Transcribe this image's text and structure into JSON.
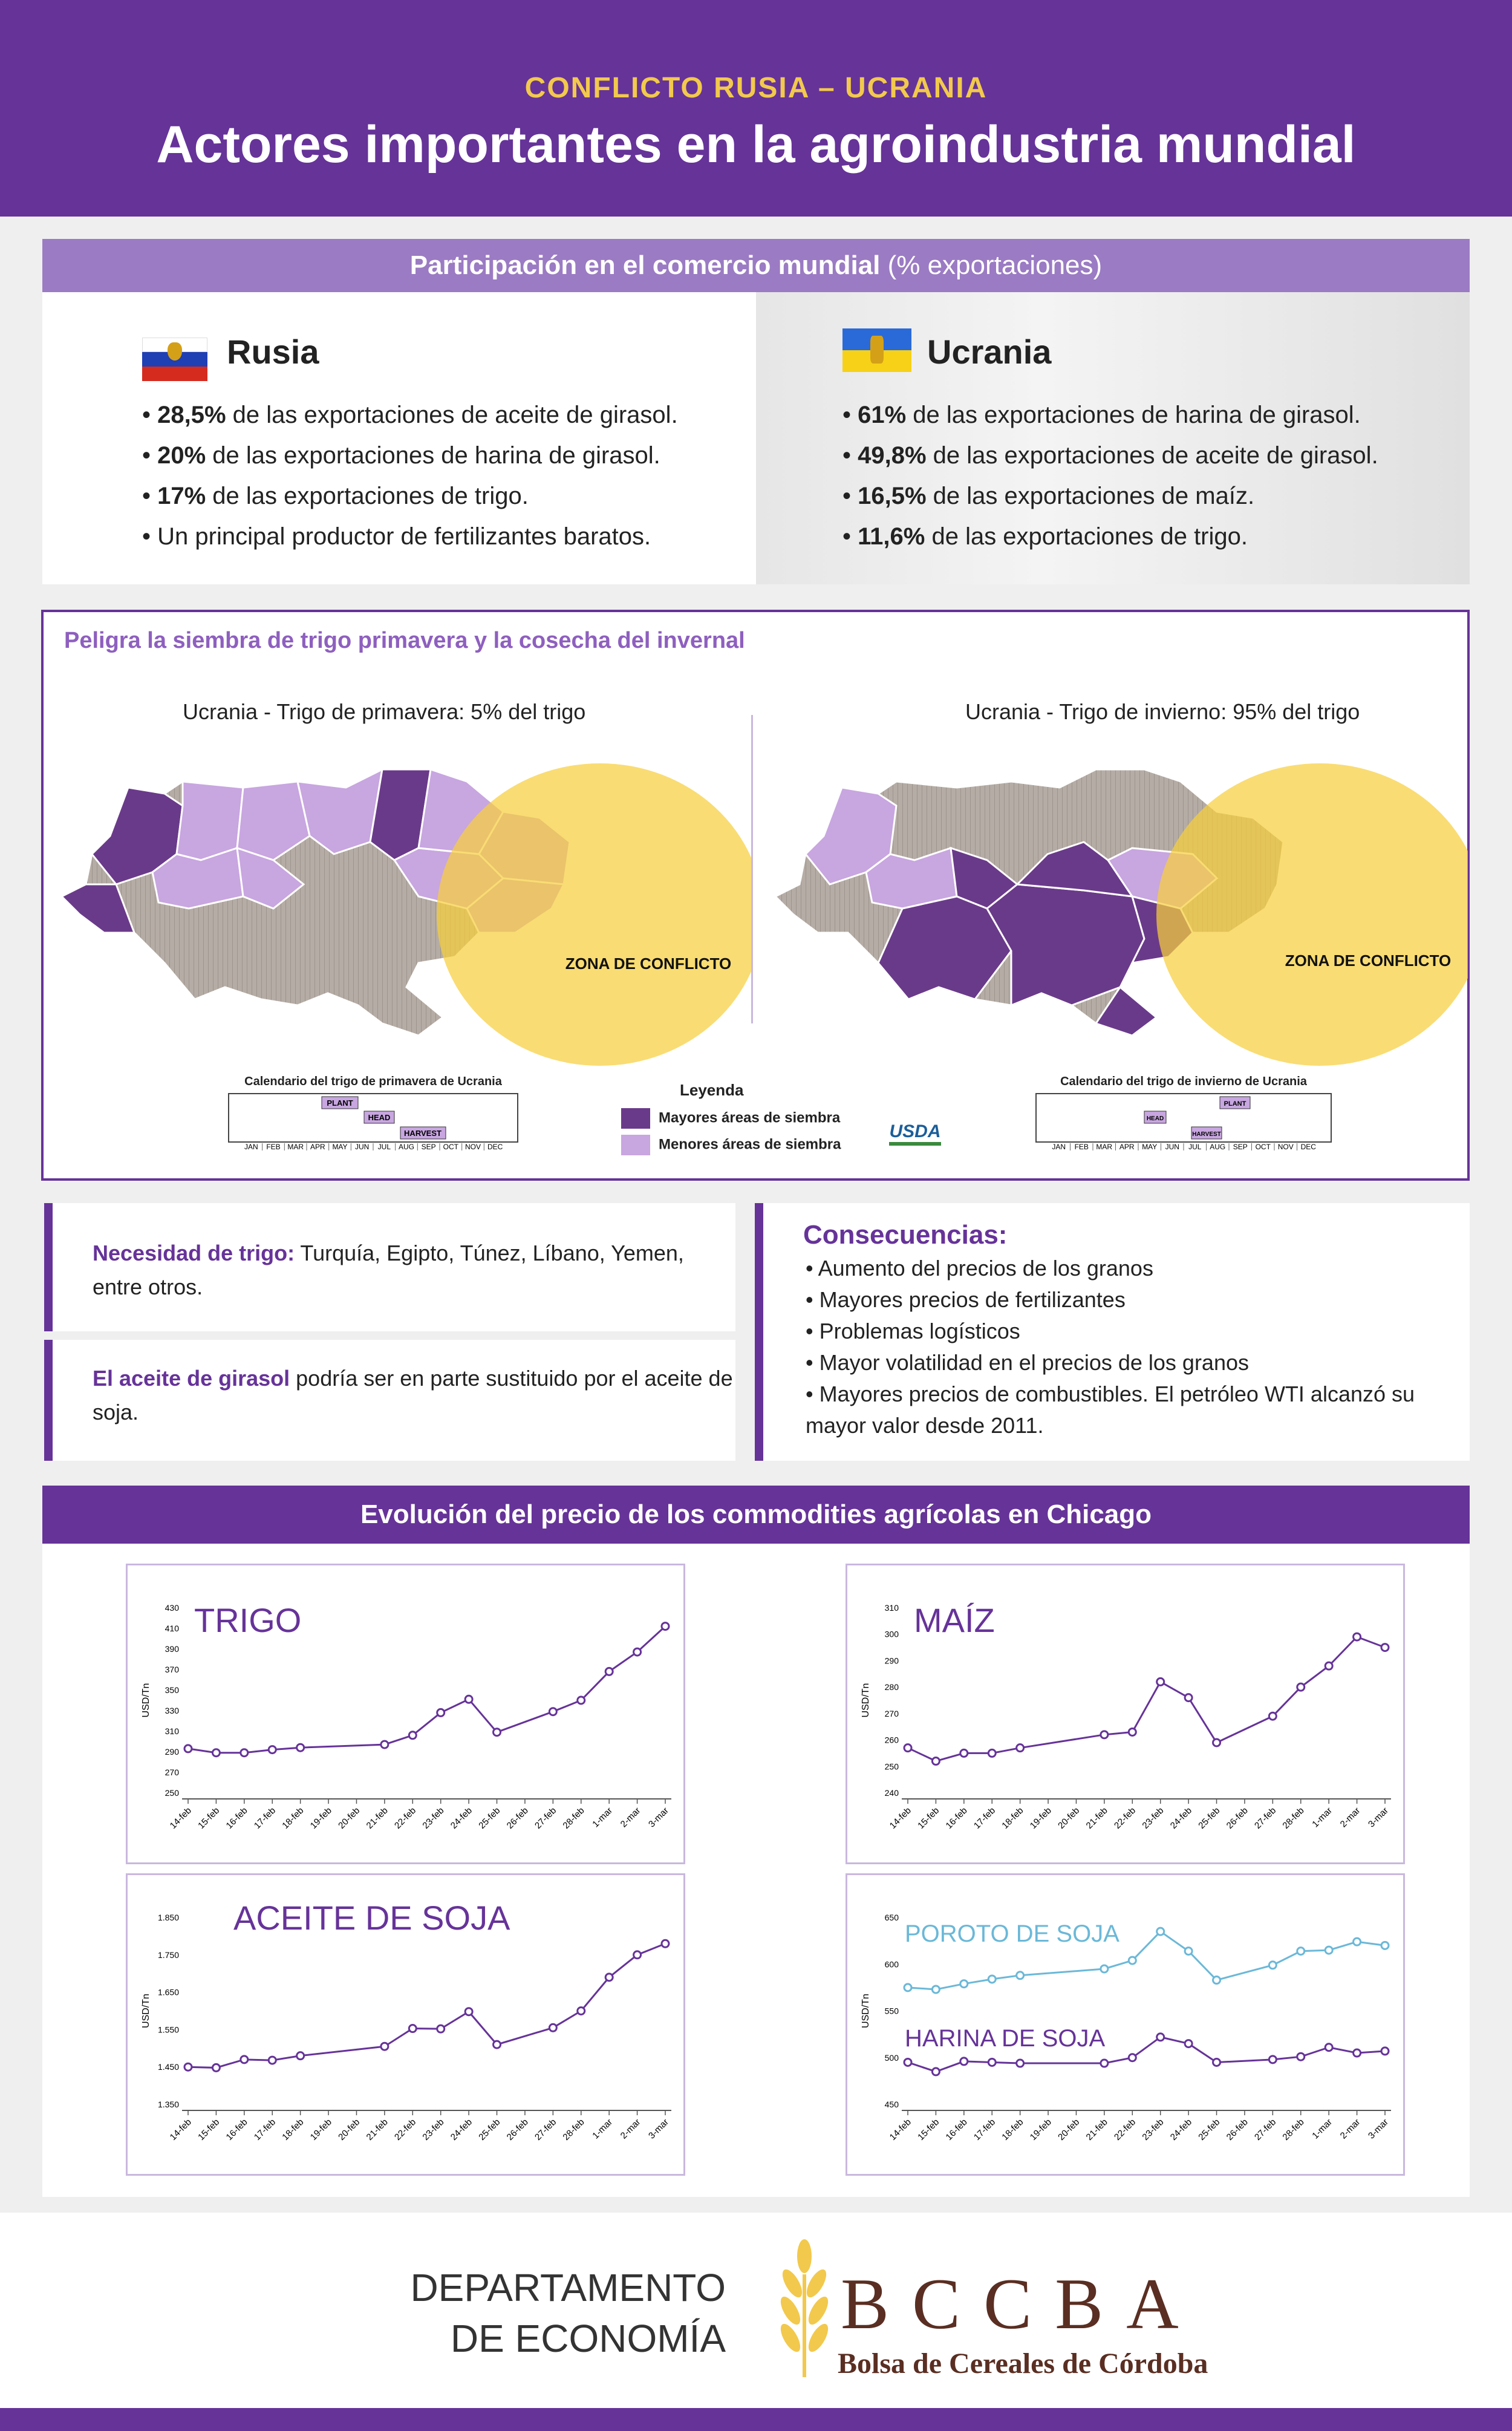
{
  "header": {
    "kicker": "CONFLICTO RUSIA – UCRANIA",
    "title": "Actores importantes en la agroindustria mundial"
  },
  "trade": {
    "bar_bold": "Participación en el comercio mundial",
    "bar_light": " (% exportaciones)",
    "russia": {
      "name": "Rusia",
      "items": [
        {
          "bold": "28,5%",
          "text": " de las exportaciones de aceite de girasol."
        },
        {
          "bold": "20%",
          "text": " de las exportaciones de harina de girasol."
        },
        {
          "bold": "17%",
          "text": " de las exportaciones de trigo."
        },
        {
          "bold": "",
          "text": "Un principal  productor de fertilizantes baratos."
        }
      ]
    },
    "ukraine": {
      "name": "Ucrania",
      "items": [
        {
          "bold": "61%",
          "text": " de las exportaciones de harina de girasol."
        },
        {
          "bold": "49,8%",
          "text": " de las exportaciones de aceite de girasol."
        },
        {
          "bold": "16,5%",
          "text": " de las exportaciones de maíz."
        },
        {
          "bold": "11,6%",
          "text": " de las exportaciones de trigo."
        }
      ]
    }
  },
  "maps": {
    "heading": "Peligra la siembra de trigo primavera y la cosecha del invernal",
    "left_title": "Ucrania - Trigo de primavera: 5% del trigo",
    "right_title": "Ucrania - Trigo de invierno: 95% del trigo",
    "conflict_label": "ZONA DE CONFLICTO",
    "left_calendar_title": "Calendario del trigo de primavera de Ucrania",
    "right_calendar_title": "Calendario del trigo de invierno de Ucrania",
    "months": [
      "JAN",
      "FEB",
      "MAR",
      "APR",
      "MAY",
      "JUN",
      "JUL",
      "AUG",
      "SEP",
      "OCT",
      "NOV",
      "DEC"
    ],
    "left_calendar": {
      "plant": "PLANT",
      "head": "HEAD",
      "harvest": "HARVEST"
    },
    "right_calendar": {
      "plant": "PLANT",
      "head": "HEAD",
      "harvest": "HARVEST"
    },
    "legend": {
      "title": "Leyenda",
      "major": "Mayores áreas de siembra",
      "minor": "Menores áreas de siembra"
    },
    "source": "USDA"
  },
  "needs": {
    "wheat_bold": "Necesidad de trigo:",
    "wheat_text": " Turquía, Egipto, Túnez, Líbano, Yemen, entre otros.",
    "oil_bold": "El aceite de girasol",
    "oil_text": " podría ser en parte sustituido por el aceite de soja."
  },
  "consequences": {
    "title": "Consecuencias:",
    "items": [
      "Aumento del precios de los granos",
      "Mayores precios de fertilizantes",
      "Problemas logísticos",
      "Mayor volatilidad en el precios de los granos",
      "Mayores precios de combustibles.  El petróleo WTI alcanzó su mayor valor desde 2011."
    ]
  },
  "prices_bar": "Evolución del precio de los commodities agrícolas en Chicago",
  "chart_data": [
    {
      "type": "line",
      "title": "TRIGO",
      "ylabel": "USD/Tn",
      "x": [
        "14-feb",
        "15-feb",
        "16-feb",
        "17-feb",
        "18-feb",
        "19-feb",
        "20-feb",
        "21-feb",
        "22-feb",
        "23-feb",
        "24-feb",
        "25-feb",
        "26-feb",
        "27-feb",
        "28-feb",
        "1-mar",
        "2-mar",
        "3-mar"
      ],
      "yticks": [
        "250",
        "270",
        "290",
        "310",
        "330",
        "350",
        "370",
        "390",
        "410",
        "430"
      ],
      "ylim": [
        250,
        430
      ],
      "series": [
        {
          "points": [
            [
              0,
              293
            ],
            [
              1,
              289
            ],
            [
              2,
              289
            ],
            [
              3,
              292
            ],
            [
              4,
              294
            ],
            [
              7,
              297
            ],
            [
              8,
              306
            ],
            [
              9,
              328
            ],
            [
              10,
              341
            ],
            [
              11,
              309
            ],
            [
              13,
              329
            ],
            [
              14,
              340
            ],
            [
              15,
              368
            ],
            [
              16,
              387
            ],
            [
              17,
              412
            ]
          ]
        }
      ],
      "color": "#663399"
    },
    {
      "type": "line",
      "title": "MAÍZ",
      "ylabel": "USD/Tn",
      "x": [
        "14-feb",
        "15-feb",
        "16-feb",
        "17-feb",
        "18-feb",
        "19-feb",
        "20-feb",
        "21-feb",
        "22-feb",
        "23-feb",
        "24-feb",
        "25-feb",
        "26-feb",
        "27-feb",
        "28-feb",
        "1-mar",
        "2-mar",
        "3-mar"
      ],
      "yticks": [
        "240",
        "250",
        "260",
        "270",
        "280",
        "290",
        "300",
        "310"
      ],
      "ylim": [
        240,
        310
      ],
      "series": [
        {
          "points": [
            [
              0,
              257
            ],
            [
              1,
              252
            ],
            [
              2,
              255
            ],
            [
              3,
              255
            ],
            [
              4,
              257
            ],
            [
              7,
              262
            ],
            [
              8,
              263
            ],
            [
              9,
              282
            ],
            [
              10,
              276
            ],
            [
              11,
              259
            ],
            [
              13,
              269
            ],
            [
              14,
              280
            ],
            [
              15,
              288
            ],
            [
              16,
              299
            ],
            [
              17,
              295
            ]
          ]
        }
      ],
      "color": "#663399"
    },
    {
      "type": "line",
      "title": "ACEITE DE SOJA",
      "ylabel": "USD/Tn",
      "x": [
        "14-feb",
        "15-feb",
        "16-feb",
        "17-feb",
        "18-feb",
        "19-feb",
        "20-feb",
        "21-feb",
        "22-feb",
        "23-feb",
        "24-feb",
        "25-feb",
        "26-feb",
        "27-feb",
        "28-feb",
        "1-mar",
        "2-mar",
        "3-mar"
      ],
      "yticks": [
        "1.350",
        "1.450",
        "1.550",
        "1.650",
        "1.750",
        "1.850"
      ],
      "ylim": [
        1350,
        1850
      ],
      "series": [
        {
          "points": [
            [
              0,
              1450
            ],
            [
              1,
              1448
            ],
            [
              2,
              1470
            ],
            [
              3,
              1468
            ],
            [
              4,
              1480
            ],
            [
              7,
              1505
            ],
            [
              8,
              1553
            ],
            [
              9,
              1552
            ],
            [
              10,
              1598
            ],
            [
              11,
              1510
            ],
            [
              13,
              1555
            ],
            [
              14,
              1600
            ],
            [
              15,
              1690
            ],
            [
              16,
              1750
            ],
            [
              17,
              1780
            ]
          ]
        }
      ],
      "color": "#663399"
    },
    {
      "type": "line",
      "title": "",
      "ylabel": "USD/Tn",
      "x": [
        "14-feb",
        "15-feb",
        "16-feb",
        "17-feb",
        "18-feb",
        "19-feb",
        "20-feb",
        "21-feb",
        "22-feb",
        "23-feb",
        "24-feb",
        "25-feb",
        "26-feb",
        "27-feb",
        "28-feb",
        "1-mar",
        "2-mar",
        "3-mar"
      ],
      "yticks": [
        "450",
        "500",
        "550",
        "600",
        "650"
      ],
      "ylim": [
        450,
        650
      ],
      "series": [
        {
          "name": "POROTO DE SOJA",
          "color": "#6bb8d8",
          "points": [
            [
              0,
              575
            ],
            [
              1,
              573
            ],
            [
              2,
              579
            ],
            [
              3,
              584
            ],
            [
              4,
              588
            ],
            [
              7,
              595
            ],
            [
              8,
              604
            ],
            [
              9,
              635
            ],
            [
              10,
              614
            ],
            [
              11,
              583
            ],
            [
              13,
              599
            ],
            [
              14,
              614
            ],
            [
              15,
              615
            ],
            [
              16,
              624
            ],
            [
              17,
              620
            ]
          ]
        },
        {
          "name": "HARINA DE SOJA",
          "color": "#663399",
          "points": [
            [
              0,
              495
            ],
            [
              1,
              485
            ],
            [
              2,
              496
            ],
            [
              3,
              495
            ],
            [
              4,
              494
            ],
            [
              7,
              494
            ],
            [
              8,
              500
            ],
            [
              9,
              522
            ],
            [
              10,
              515
            ],
            [
              11,
              495
            ],
            [
              13,
              498
            ],
            [
              14,
              501
            ],
            [
              15,
              511
            ],
            [
              16,
              505
            ],
            [
              17,
              507
            ]
          ]
        }
      ]
    }
  ],
  "footer": {
    "dept_line1": "DEPARTAMENTO",
    "dept_line2": "DE ECONOMÍA",
    "org_short": "BCCBA",
    "org_full": "Bolsa de Cereales de Córdoba"
  },
  "colors": {
    "purple": "#663399",
    "light_purple": "#c8a6e0",
    "yellow": "#f2c94c",
    "gray": "#b5aca5"
  }
}
